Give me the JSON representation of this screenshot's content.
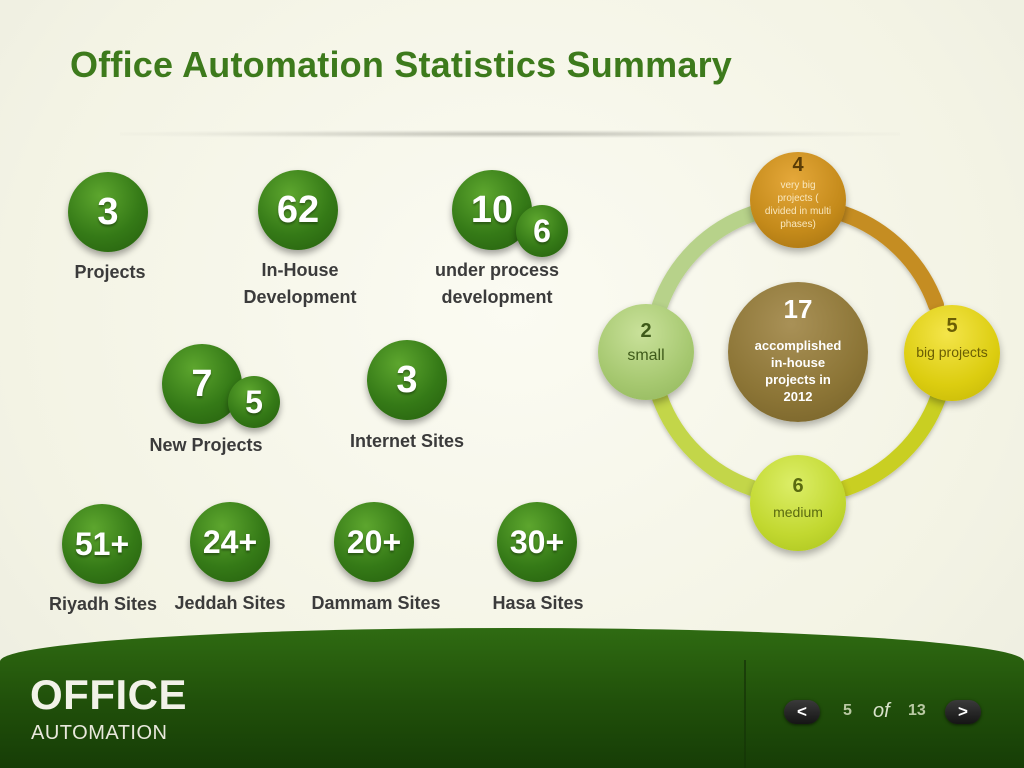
{
  "title": "Office Automation Statistics Summary",
  "stats": {
    "projects": {
      "value": "3",
      "label": "Projects"
    },
    "inhouse": {
      "value": "62",
      "label_line1": "In-House",
      "label_line2": "Development"
    },
    "under_process": {
      "value": "10",
      "sub_value": "6",
      "label_line1": "under process",
      "label_line2": "development"
    },
    "new_projects": {
      "value": "7",
      "sub_value": "5",
      "label": "New Projects"
    },
    "internet_sites": {
      "value": "3",
      "label": "Internet Sites"
    },
    "riyadh": {
      "value": "51+",
      "label": "Riyadh Sites"
    },
    "jeddah": {
      "value": "24+",
      "label": "Jeddah Sites"
    },
    "dammam": {
      "value": "20+",
      "label": "Dammam Sites"
    },
    "hasa": {
      "value": "30+",
      "label": "Hasa Sites"
    }
  },
  "cycle": {
    "center": {
      "value": "17",
      "label": "accomplished in-house projects in 2012"
    },
    "top": {
      "value": "4",
      "label": "very big projects ( divided in multi phases)"
    },
    "right": {
      "value": "5",
      "label": "big projects"
    },
    "bottom": {
      "value": "6",
      "label": "medium"
    },
    "left": {
      "value": "2",
      "label": "small"
    }
  },
  "colors": {
    "title_green": "#3d7a1c",
    "ball_green": "#357a17",
    "footer_green": "#204f0a",
    "node_top": "#c48a1a",
    "node_right": "#dccd10",
    "node_bottom": "#c2d830",
    "node_left": "#a6c870",
    "node_center": "#8c7536"
  },
  "footer": {
    "brand_title": "OFFICE",
    "brand_subtitle": "AUTOMATION",
    "prev_symbol": "<",
    "next_symbol": ">",
    "current_page": "5",
    "of_label": "of",
    "total_pages": "13",
    "prev_icon": "chevron-left-icon",
    "next_icon": "chevron-right-icon"
  }
}
